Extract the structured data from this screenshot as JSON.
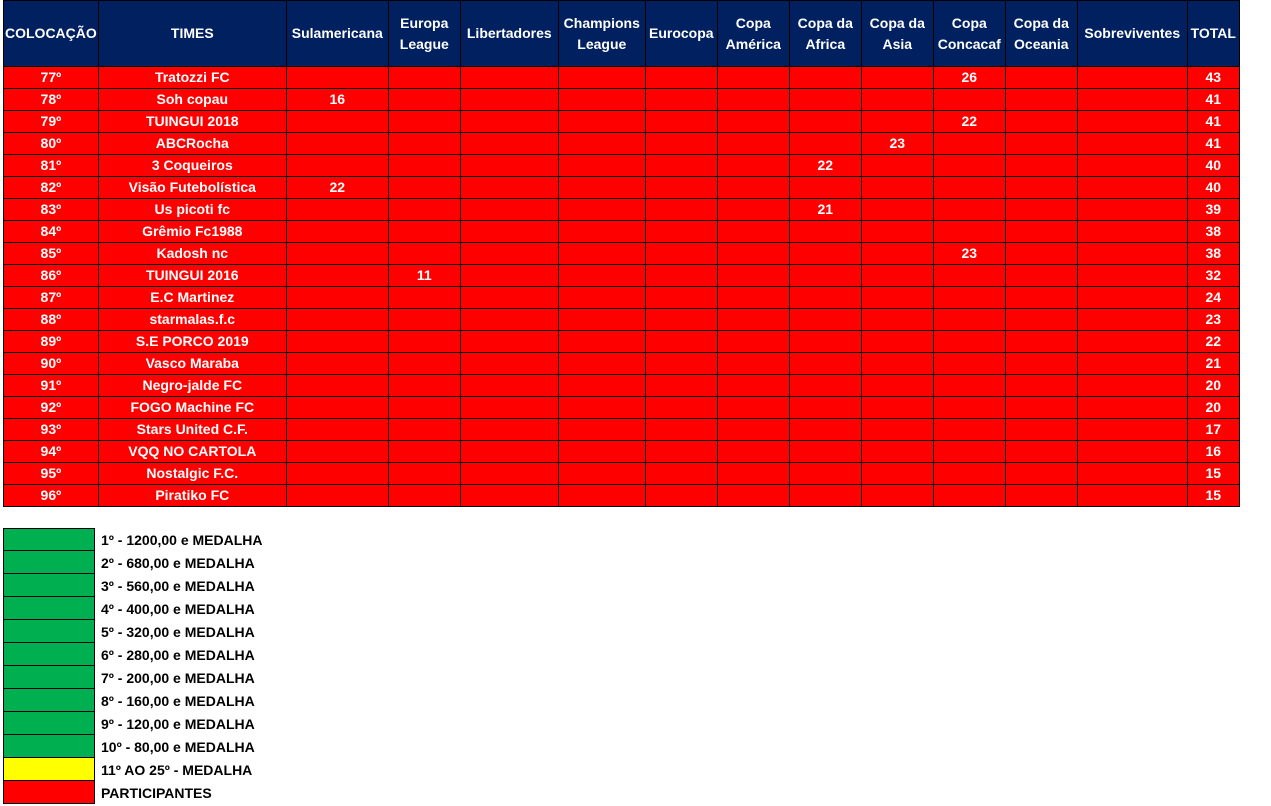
{
  "colors": {
    "header": "#002060",
    "participant": "#FF0000",
    "prize": "#00B050",
    "medal": "#FFFF00"
  },
  "table": {
    "headers": [
      "COLOCAÇÃO",
      "TIMES",
      "Sulamericana",
      "Europa League",
      "Libertadores",
      "Champions League",
      "Eurocopa",
      "Copa América",
      "Copa da Africa",
      "Copa da Asia",
      "Copa Concacaf",
      "Copa da Oceania",
      "Sobreviventes",
      "TOTAL"
    ],
    "rows": [
      [
        "77º",
        "Tratozzi FC",
        "",
        "",
        "",
        "",
        "",
        "",
        "",
        "",
        "26",
        "",
        "",
        "43"
      ],
      [
        "78º",
        "Soh copau",
        "16",
        "",
        "",
        "",
        "",
        "",
        "",
        "",
        "",
        "",
        "",
        "41"
      ],
      [
        "79º",
        "TUINGUI 2018",
        "",
        "",
        "",
        "",
        "",
        "",
        "",
        "",
        "22",
        "",
        "",
        "41"
      ],
      [
        "80º",
        "ABCRocha",
        "",
        "",
        "",
        "",
        "",
        "",
        "",
        "23",
        "",
        "",
        "",
        "41"
      ],
      [
        "81º",
        "3 Coqueiros",
        "",
        "",
        "",
        "",
        "",
        "",
        "22",
        "",
        "",
        "",
        "",
        "40"
      ],
      [
        "82º",
        "Visão Futebolística",
        "22",
        "",
        "",
        "",
        "",
        "",
        "",
        "",
        "",
        "",
        "",
        "40"
      ],
      [
        "83º",
        "Us picoti fc",
        "",
        "",
        "",
        "",
        "",
        "",
        "21",
        "",
        "",
        "",
        "",
        "39"
      ],
      [
        "84º",
        "Grêmio Fc1988",
        "",
        "",
        "",
        "",
        "",
        "",
        "",
        "",
        "",
        "",
        "",
        "38"
      ],
      [
        "85º",
        "Kadosh nc",
        "",
        "",
        "",
        "",
        "",
        "",
        "",
        "",
        "23",
        "",
        "",
        "38"
      ],
      [
        "86º",
        "TUINGUI 2016",
        "",
        "11",
        "",
        "",
        "",
        "",
        "",
        "",
        "",
        "",
        "",
        "32"
      ],
      [
        "87º",
        "E.C Martinez",
        "",
        "",
        "",
        "",
        "",
        "",
        "",
        "",
        "",
        "",
        "",
        "24"
      ],
      [
        "88º",
        "starmalas.f.c",
        "",
        "",
        "",
        "",
        "",
        "",
        "",
        "",
        "",
        "",
        "",
        "23"
      ],
      [
        "89º",
        "S.E PORCO 2019",
        "",
        "",
        "",
        "",
        "",
        "",
        "",
        "",
        "",
        "",
        "",
        "22"
      ],
      [
        "90º",
        "Vasco Maraba",
        "",
        "",
        "",
        "",
        "",
        "",
        "",
        "",
        "",
        "",
        "",
        "21"
      ],
      [
        "91º",
        "Negro-jalde FC",
        "",
        "",
        "",
        "",
        "",
        "",
        "",
        "",
        "",
        "",
        "",
        "20"
      ],
      [
        "92º",
        "FOGO Machine FC",
        "",
        "",
        "",
        "",
        "",
        "",
        "",
        "",
        "",
        "",
        "",
        "20"
      ],
      [
        "93º",
        "Stars United C.F.",
        "",
        "",
        "",
        "",
        "",
        "",
        "",
        "",
        "",
        "",
        "",
        "17"
      ],
      [
        "94º",
        "VQQ NO CARTOLA",
        "",
        "",
        "",
        "",
        "",
        "",
        "",
        "",
        "",
        "",
        "",
        "16"
      ],
      [
        "95º",
        "Nostalgic F.C.",
        "",
        "",
        "",
        "",
        "",
        "",
        "",
        "",
        "",
        "",
        "",
        "15"
      ],
      [
        "96º",
        "Piratiko FC",
        "",
        "",
        "",
        "",
        "",
        "",
        "",
        "",
        "",
        "",
        "",
        "15"
      ]
    ]
  },
  "legend": [
    {
      "label": "1º - 1200,00 e MEDALHA",
      "color": "#00B050"
    },
    {
      "label": "2º - 680,00 e MEDALHA",
      "color": "#00B050"
    },
    {
      "label": "3º - 560,00 e MEDALHA",
      "color": "#00B050"
    },
    {
      "label": "4º - 400,00 e MEDALHA",
      "color": "#00B050"
    },
    {
      "label": "5º - 320,00 e MEDALHA",
      "color": "#00B050"
    },
    {
      "label": "6º - 280,00 e MEDALHA",
      "color": "#00B050"
    },
    {
      "label": "7º - 200,00 e MEDALHA",
      "color": "#00B050"
    },
    {
      "label": "8º - 160,00 e MEDALHA",
      "color": "#00B050"
    },
    {
      "label": "9º - 120,00 e MEDALHA",
      "color": "#00B050"
    },
    {
      "label": "10º - 80,00 e MEDALHA",
      "color": "#00B050"
    },
    {
      "label": "11º AO 25º - MEDALHA",
      "color": "#FFFF00"
    },
    {
      "label": "PARTICIPANTES",
      "color": "#FF0000"
    }
  ]
}
